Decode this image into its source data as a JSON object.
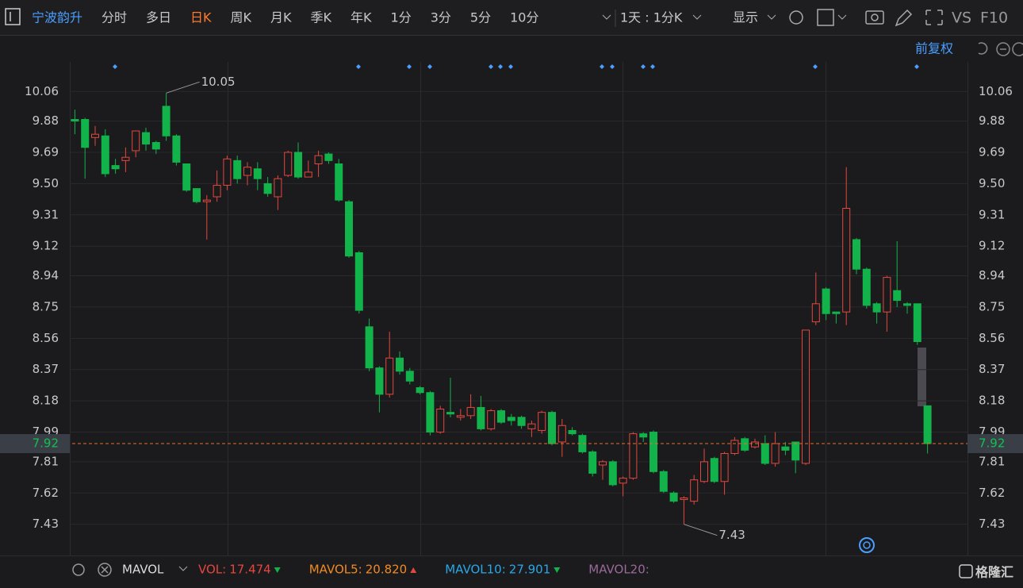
{
  "toolbar": {
    "symbol": "宁波韵升",
    "periods": [
      "分时",
      "多日",
      "日K",
      "周K",
      "月K",
      "季K",
      "年K",
      "1分",
      "3分",
      "5分",
      "10分"
    ],
    "active_period": "日K",
    "interval": "1天 : 1分K",
    "display": "显示",
    "vs": "VS",
    "f10": "F10",
    "adjust": "前复权"
  },
  "indicator": {
    "name": "MAVOL",
    "items": [
      {
        "name": "VOL:",
        "value": 17.474,
        "color": "#e4473e"
      },
      {
        "name": "MAVOL5:",
        "value": 20.82,
        "value_label": "20.820",
        "color": "#f08a24"
      },
      {
        "name": "MAVOL10:",
        "value": 27.901,
        "color": "#2aa7e8"
      },
      {
        "name": "MAVOL20:",
        "color": "#9a6a9a"
      }
    ]
  },
  "logo": "格隆汇",
  "chart_data": {
    "type": "candlestick",
    "open": [
      9.89,
      9.89,
      9.78,
      9.79,
      9.61,
      9.64,
      9.7,
      9.81,
      9.75,
      9.97,
      9.79,
      9.62,
      9.47,
      9.39,
      9.42,
      9.49,
      9.64,
      9.55,
      9.59,
      9.5,
      9.42,
      9.55,
      9.69,
      9.54,
      9.62,
      9.68,
      9.62,
      9.39,
      9.08,
      8.63,
      8.38,
      8.22,
      8.44,
      8.36,
      8.26,
      8.23,
      7.99,
      8.11,
      8.08,
      8.09,
      8.14,
      8.01,
      8.12,
      8.08,
      8.08,
      8.01,
      8.0,
      8.11,
      7.93,
      8.0,
      7.97,
      7.87,
      7.79,
      7.81,
      7.68,
      7.71,
      7.98,
      7.99,
      7.75,
      7.62,
      7.58,
      7.57,
      7.69,
      7.83,
      7.69,
      7.86,
      7.95,
      7.9,
      7.92,
      7.8,
      7.9,
      7.93,
      7.8,
      8.66,
      8.86,
      8.72,
      8.72,
      9.16,
      8.98,
      8.77,
      8.72,
      8.85,
      8.77,
      8.77,
      8.15
    ],
    "high": [
      9.95,
      9.9,
      9.85,
      9.83,
      9.65,
      9.72,
      9.82,
      9.84,
      9.76,
      10.05,
      9.8,
      9.62,
      9.47,
      9.43,
      9.58,
      9.67,
      9.67,
      9.63,
      9.63,
      9.54,
      9.55,
      9.7,
      9.75,
      9.64,
      9.7,
      9.69,
      9.65,
      9.4,
      9.09,
      8.68,
      8.39,
      8.6,
      8.48,
      8.38,
      8.27,
      8.24,
      8.15,
      8.32,
      8.13,
      8.22,
      8.21,
      8.13,
      8.13,
      8.1,
      8.09,
      8.06,
      8.12,
      8.12,
      8.07,
      8.02,
      7.98,
      7.88,
      7.82,
      7.82,
      7.72,
      7.99,
      7.99,
      8.0,
      7.76,
      7.63,
      7.6,
      7.73,
      7.89,
      7.84,
      7.87,
      7.96,
      7.96,
      7.95,
      7.97,
      7.99,
      7.93,
      7.93,
      8.61,
      8.96,
      8.87,
      8.72,
      9.6,
      9.17,
      8.99,
      8.78,
      8.94,
      9.15,
      8.78,
      8.77,
      8.15
    ],
    "low": [
      9.8,
      9.53,
      9.73,
      9.54,
      9.56,
      9.57,
      9.66,
      9.7,
      9.68,
      9.76,
      9.61,
      9.45,
      9.38,
      9.16,
      9.39,
      9.46,
      9.5,
      9.49,
      9.46,
      9.42,
      9.34,
      9.54,
      9.53,
      9.54,
      9.54,
      9.62,
      9.39,
      9.05,
      8.71,
      8.36,
      8.11,
      8.2,
      8.34,
      8.28,
      8.22,
      7.97,
      7.98,
      8.08,
      8.06,
      8.07,
      8.0,
      8.0,
      8.04,
      8.03,
      8.01,
      7.96,
      7.98,
      7.91,
      7.84,
      7.97,
      7.86,
      7.72,
      7.7,
      7.66,
      7.6,
      7.7,
      7.93,
      7.74,
      7.62,
      7.56,
      7.43,
      7.55,
      7.68,
      7.68,
      7.61,
      7.85,
      7.87,
      7.89,
      7.79,
      7.78,
      7.85,
      7.74,
      7.79,
      8.64,
      8.67,
      8.65,
      8.64,
      8.95,
      8.74,
      8.65,
      8.6,
      8.75,
      8.71,
      8.52,
      7.86
    ],
    "close": [
      9.88,
      9.72,
      9.8,
      9.56,
      9.59,
      9.66,
      9.82,
      9.74,
      9.71,
      9.79,
      9.63,
      9.46,
      9.39,
      9.4,
      9.49,
      9.65,
      9.53,
      9.6,
      9.53,
      9.44,
      9.53,
      9.69,
      9.54,
      9.57,
      9.67,
      9.64,
      9.4,
      9.06,
      8.73,
      8.38,
      8.22,
      8.44,
      8.36,
      8.3,
      8.23,
      7.99,
      8.13,
      8.1,
      8.09,
      8.14,
      8.01,
      8.12,
      8.05,
      8.06,
      8.03,
      8.04,
      8.11,
      7.92,
      8.03,
      7.98,
      7.87,
      7.74,
      7.81,
      7.67,
      7.71,
      7.98,
      7.96,
      7.75,
      7.63,
      7.57,
      7.59,
      7.7,
      7.81,
      7.69,
      7.86,
      7.94,
      7.88,
      7.93,
      7.8,
      7.92,
      7.88,
      7.82,
      8.61,
      8.77,
      8.71,
      8.71,
      9.35,
      8.98,
      8.76,
      8.72,
      8.93,
      8.79,
      8.76,
      8.54,
      7.92
    ],
    "up_color": "#e4473e",
    "down_color": "#12b34b",
    "ylim": [
      7.25,
      10.23
    ],
    "yticks": [
      10.06,
      9.88,
      9.69,
      {
        "value": 9.5,
        "label": "9.50"
      },
      9.31,
      9.12,
      8.94,
      8.75,
      8.56,
      8.37,
      8.18,
      7.99,
      7.81,
      7.62,
      7.43
    ],
    "grid": true,
    "last_price": 7.92,
    "high_annotation": 10.05,
    "low_annotation": 7.43
  }
}
